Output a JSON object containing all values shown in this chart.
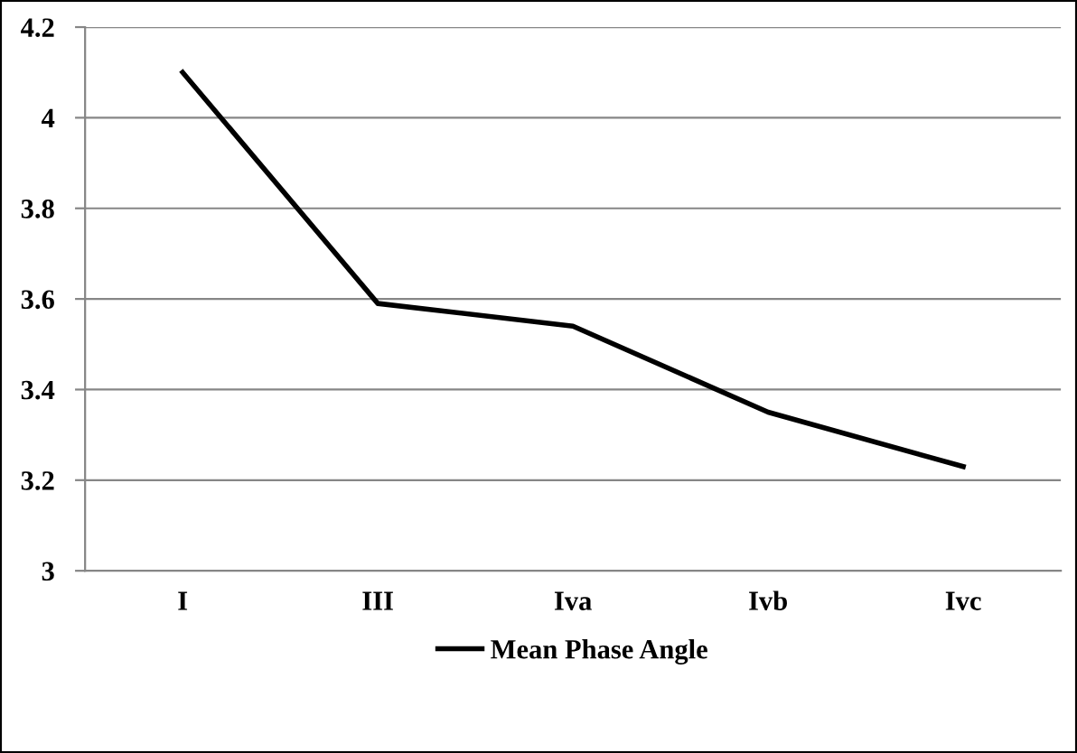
{
  "chart_data": {
    "type": "line",
    "categories": [
      "I",
      "III",
      "Iva",
      "Ivb",
      "Ivc"
    ],
    "series": [
      {
        "name": "Mean Phase Angle",
        "color": "#000000",
        "values": [
          4.1,
          3.59,
          3.54,
          3.35,
          3.23
        ]
      }
    ],
    "ylim": [
      3,
      4.2
    ],
    "yticks": [
      3,
      {
        "value": 3.2,
        "label": "3.2"
      },
      {
        "value": 3.4,
        "label": "3.4"
      },
      {
        "value": 3.6,
        "label": "3.6"
      },
      {
        "value": 3.8,
        "label": "3.8"
      },
      {
        "value": 4,
        "label": "4"
      },
      {
        "value": 4.2,
        "label": "4.2"
      }
    ],
    "grid": "y",
    "legend": "bottom",
    "marker": "none",
    "line_style": "solid"
  }
}
